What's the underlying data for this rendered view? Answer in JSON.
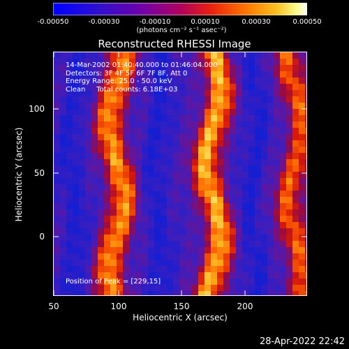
{
  "colorbar": {
    "ticks": [
      "-0.00050",
      "-0.00030",
      "-0.00010",
      "0.00010",
      "0.00030",
      "0.00050"
    ],
    "units": "(photons cm⁻² s⁻¹ asec⁻²)",
    "colors": [
      "#0000ff",
      "#4000c0",
      "#8000a0",
      "#c00040",
      "#ff4000",
      "#ffa000",
      "#ffff80",
      "#ffffff"
    ]
  },
  "plot": {
    "title": "Reconstructed RHESSI Image",
    "annotations": [
      "14-Mar-2002 01:40:40.000 to 01:46:04.000",
      "Detectors: 3F 4F 5F 6F 7F 8F, Att 0",
      "Energy Range: 25.0 - 50.0 keV",
      "Clean     Total counts: 6.18E+03"
    ],
    "peak_label": "Position of Peak = [229,15]",
    "xlabel": "Heliocentric X (arcsec)",
    "ylabel": "Heliocentric Y (arcsec)",
    "x_ticks": [
      "50",
      "100",
      "150",
      "200"
    ],
    "y_ticks": [
      "100",
      "50",
      "0"
    ]
  },
  "footer": {
    "date": "28-Apr-2022 22:42"
  },
  "chart_data": {
    "type": "heatmap",
    "title": "Reconstructed RHESSI Image",
    "xlabel": "Heliocentric X (arcsec)",
    "ylabel": "Heliocentric Y (arcsec)",
    "xlim": [
      50,
      240
    ],
    "ylim": [
      -47,
      140
    ],
    "clim": [
      -0.0005,
      0.0005
    ],
    "x_ticks": [
      50,
      100,
      150,
      200
    ],
    "y_ticks": [
      0,
      50,
      100
    ],
    "peak": [
      229,
      15
    ],
    "bright_ridges_x": [
      97,
      170,
      232
    ],
    "dark_lanes_x": [
      65,
      128,
      200
    ]
  }
}
